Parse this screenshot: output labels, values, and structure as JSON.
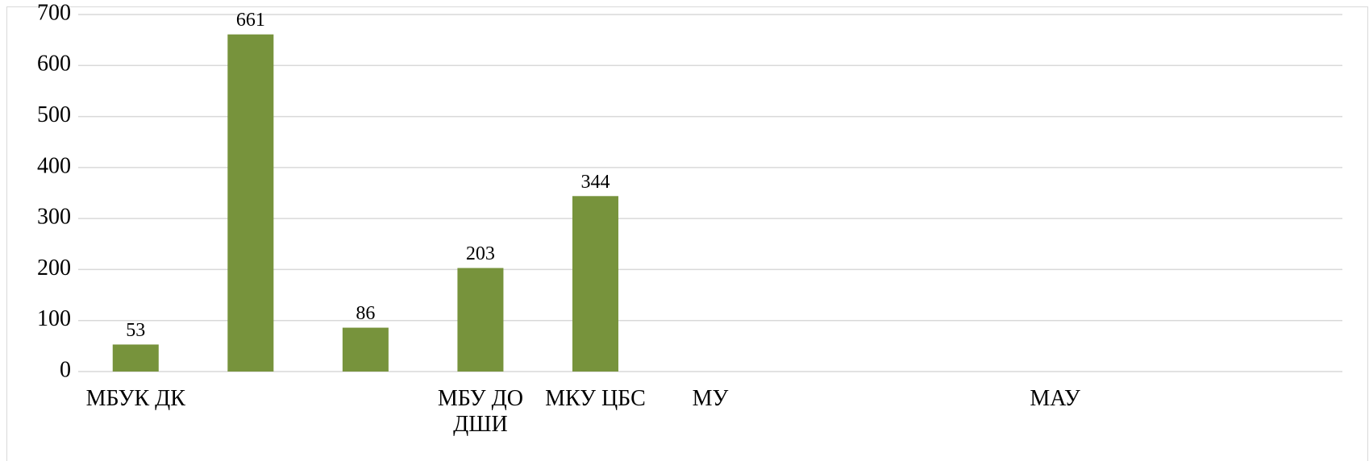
{
  "chart_data": {
    "type": "bar",
    "categories": [
      "МБУК ДК",
      null,
      null,
      "МБУ ДО ДШИ",
      "МКУ ЦБС",
      "МУ",
      null,
      null,
      "МАУ",
      null,
      null
    ],
    "values": [
      53,
      661,
      86,
      203,
      344,
      null,
      null,
      null,
      null,
      null,
      null
    ],
    "color": "#77933c",
    "ylim": [
      0,
      700
    ],
    "yticks": [
      0,
      100,
      200,
      300,
      400,
      500,
      600,
      700
    ],
    "grid": true
  }
}
